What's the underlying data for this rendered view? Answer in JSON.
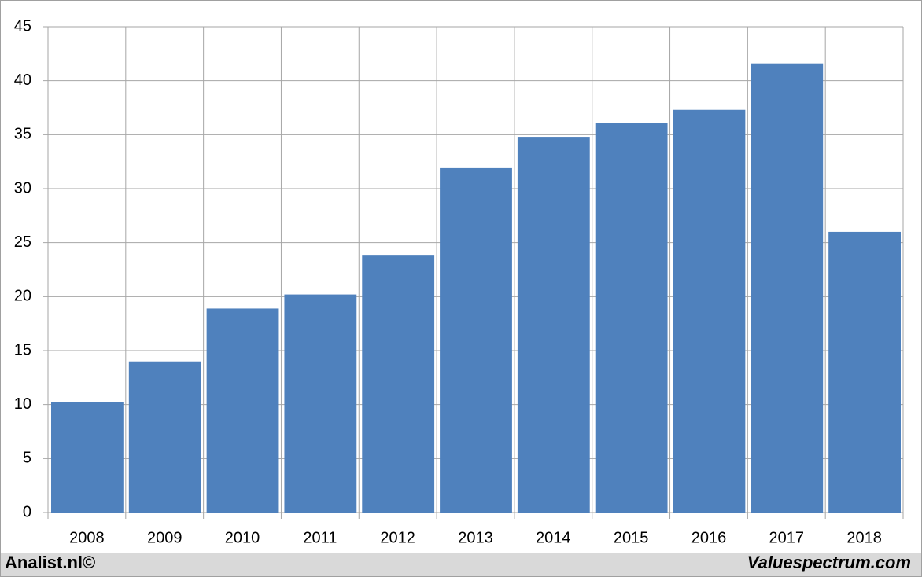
{
  "chart_data": {
    "type": "bar",
    "categories": [
      "2008",
      "2009",
      "2010",
      "2011",
      "2012",
      "2013",
      "2014",
      "2015",
      "2016",
      "2017",
      "2018"
    ],
    "values": [
      10.2,
      14.0,
      18.9,
      20.2,
      23.8,
      31.9,
      34.8,
      36.1,
      37.3,
      41.6,
      26.0
    ],
    "color": "#4f81bd",
    "ylim": [
      0,
      45
    ],
    "yticks": [
      0,
      5,
      10,
      15,
      20,
      25,
      30,
      35,
      40,
      45
    ],
    "grid": true
  },
  "footer": {
    "left": "Analist.nl©",
    "right": "Valuespectrum.com"
  }
}
